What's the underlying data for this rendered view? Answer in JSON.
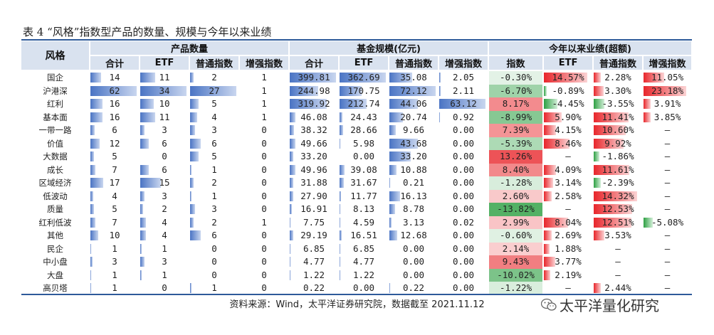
{
  "title": "表 4 “风格”指数型产品的数量、规模与今年以来业绩",
  "headers": {
    "style": "风格",
    "groups": {
      "count": "产品数量",
      "scale": "基金规模(亿元)",
      "perf": "今年以来业绩(超额)"
    },
    "count_cols": [
      "合计",
      "ETF",
      "普通指数",
      "增强指数"
    ],
    "scale_cols": [
      "合计",
      "ETF",
      "普通指数",
      "增强指数"
    ],
    "perf_cols": [
      "指数",
      "ETF",
      "普通指数",
      "增强指数"
    ]
  },
  "rows": [
    {
      "name": "国企",
      "count": [
        "14",
        "11",
        "2",
        "1"
      ],
      "scale": [
        "399.81",
        "362.69",
        "35.08",
        "2.05"
      ],
      "perf": [
        "-0.30%",
        "14.57%",
        "2.28%",
        "11.05%"
      ]
    },
    {
      "name": "沪港深",
      "count": [
        "62",
        "34",
        "27",
        "1"
      ],
      "scale": [
        "244.98",
        "170.75",
        "72.12",
        "2.11"
      ],
      "perf": [
        "-6.70%",
        "-0.89%",
        "3.30%",
        "23.18%"
      ]
    },
    {
      "name": "红利",
      "count": [
        "16",
        "10",
        "5",
        "1"
      ],
      "scale": [
        "319.92",
        "212.74",
        "44.06",
        "63.12"
      ],
      "perf": [
        "8.17%",
        "-4.45%",
        "-3.55%",
        "3.91%"
      ]
    },
    {
      "name": "基本面",
      "count": [
        "16",
        "11",
        "4",
        "1"
      ],
      "scale": [
        "46.08",
        "24.43",
        "20.74",
        "0.92"
      ],
      "perf": [
        "-8.99%",
        "5.90%",
        "11.41%",
        "3.85%"
      ]
    },
    {
      "name": "一带一路",
      "count": [
        "6",
        "3",
        "3",
        "0"
      ],
      "scale": [
        "38.32",
        "28.66",
        "9.66",
        "0.00"
      ],
      "perf": [
        "7.39%",
        "4.15%",
        "10.60%",
        "–"
      ]
    },
    {
      "name": "价值",
      "count": [
        "12",
        "6",
        "6",
        "0"
      ],
      "scale": [
        "49.66",
        "5.98",
        "43.68",
        "0.00"
      ],
      "perf": [
        "-5.39%",
        "8.46%",
        "9.92%",
        "–"
      ]
    },
    {
      "name": "大数据",
      "count": [
        "5",
        "0",
        "5",
        "0"
      ],
      "scale": [
        "33.20",
        "0.00",
        "33.20",
        "0.00"
      ],
      "perf": [
        "13.26%",
        "–",
        "-1.86%",
        "–"
      ]
    },
    {
      "name": "成长",
      "count": [
        "7",
        "6",
        "1",
        "0"
      ],
      "scale": [
        "49.96",
        "39.08",
        "10.88",
        "0.00"
      ],
      "perf": [
        "8.40%",
        "4.09%",
        "11.61%",
        "–"
      ]
    },
    {
      "name": "区域经济",
      "count": [
        "17",
        "15",
        "2",
        "0"
      ],
      "scale": [
        "31.88",
        "31.67",
        "0.21",
        "0.00"
      ],
      "perf": [
        "-1.28%",
        "3.14%",
        "-2.39%",
        "–"
      ]
    },
    {
      "name": "低波动",
      "count": [
        "4",
        "3",
        "1",
        "0"
      ],
      "scale": [
        "27.90",
        "11.77",
        "16.13",
        "0.00"
      ],
      "perf": [
        "2.60%",
        "2.58%",
        "14.32%",
        "–"
      ]
    },
    {
      "name": "质量",
      "count": [
        "5",
        "2",
        "3",
        "0"
      ],
      "scale": [
        "16.91",
        "8.13",
        "8.78",
        "0.00"
      ],
      "perf": [
        "-13.82%",
        "–",
        "12.53%",
        "–"
      ]
    },
    {
      "name": "红利低波",
      "count": [
        "7",
        "4",
        "2",
        "1"
      ],
      "scale": [
        "7.75",
        "4.59",
        "3.13",
        "0.02"
      ],
      "perf": [
        "2.99%",
        "8.04%",
        "12.51%",
        "-5.08%"
      ]
    },
    {
      "name": "其他",
      "count": [
        "10",
        "4",
        "6",
        "0"
      ],
      "scale": [
        "29.19",
        "16.51",
        "12.68",
        "0.00"
      ],
      "perf": [
        "-0.60%",
        "2.69%",
        "3.53%",
        "–"
      ]
    },
    {
      "name": "民企",
      "count": [
        "1",
        "1",
        "0",
        "0"
      ],
      "scale": [
        "6.85",
        "6.85",
        "0.00",
        "0.00"
      ],
      "perf": [
        "2.14%",
        "1.88%",
        "–",
        "–"
      ]
    },
    {
      "name": "中小盘",
      "count": [
        "3",
        "3",
        "0",
        "0"
      ],
      "scale": [
        "4.77",
        "4.77",
        "0.00",
        "0.00"
      ],
      "perf": [
        "9.43%",
        "3.77%",
        "–",
        "–"
      ]
    },
    {
      "name": "大盘",
      "count": [
        "1",
        "1",
        "0",
        "0"
      ],
      "scale": [
        "1.22",
        "1.22",
        "0.00",
        "0.00"
      ],
      "perf": [
        "-10.02%",
        "2.19%",
        "–",
        "–"
      ]
    },
    {
      "name": "高贝塔",
      "count": [
        "1",
        "0",
        "1",
        "0"
      ],
      "scale": [
        "0.22",
        "0.00",
        "0.22",
        "0.00"
      ],
      "perf": [
        "-1.22%",
        "–",
        "2.44%",
        "–"
      ]
    }
  ],
  "source": "资料来源：Wind，太平洋证券研究院，数据截至 2021.11.12",
  "watermark": "太平洋量化研究",
  "colors": {
    "header_bg": "#d9e2ef",
    "rule": "#2e5a9a",
    "positive": "#e8262b",
    "negative": "#2ea043",
    "databar": "#4a74c4"
  }
}
